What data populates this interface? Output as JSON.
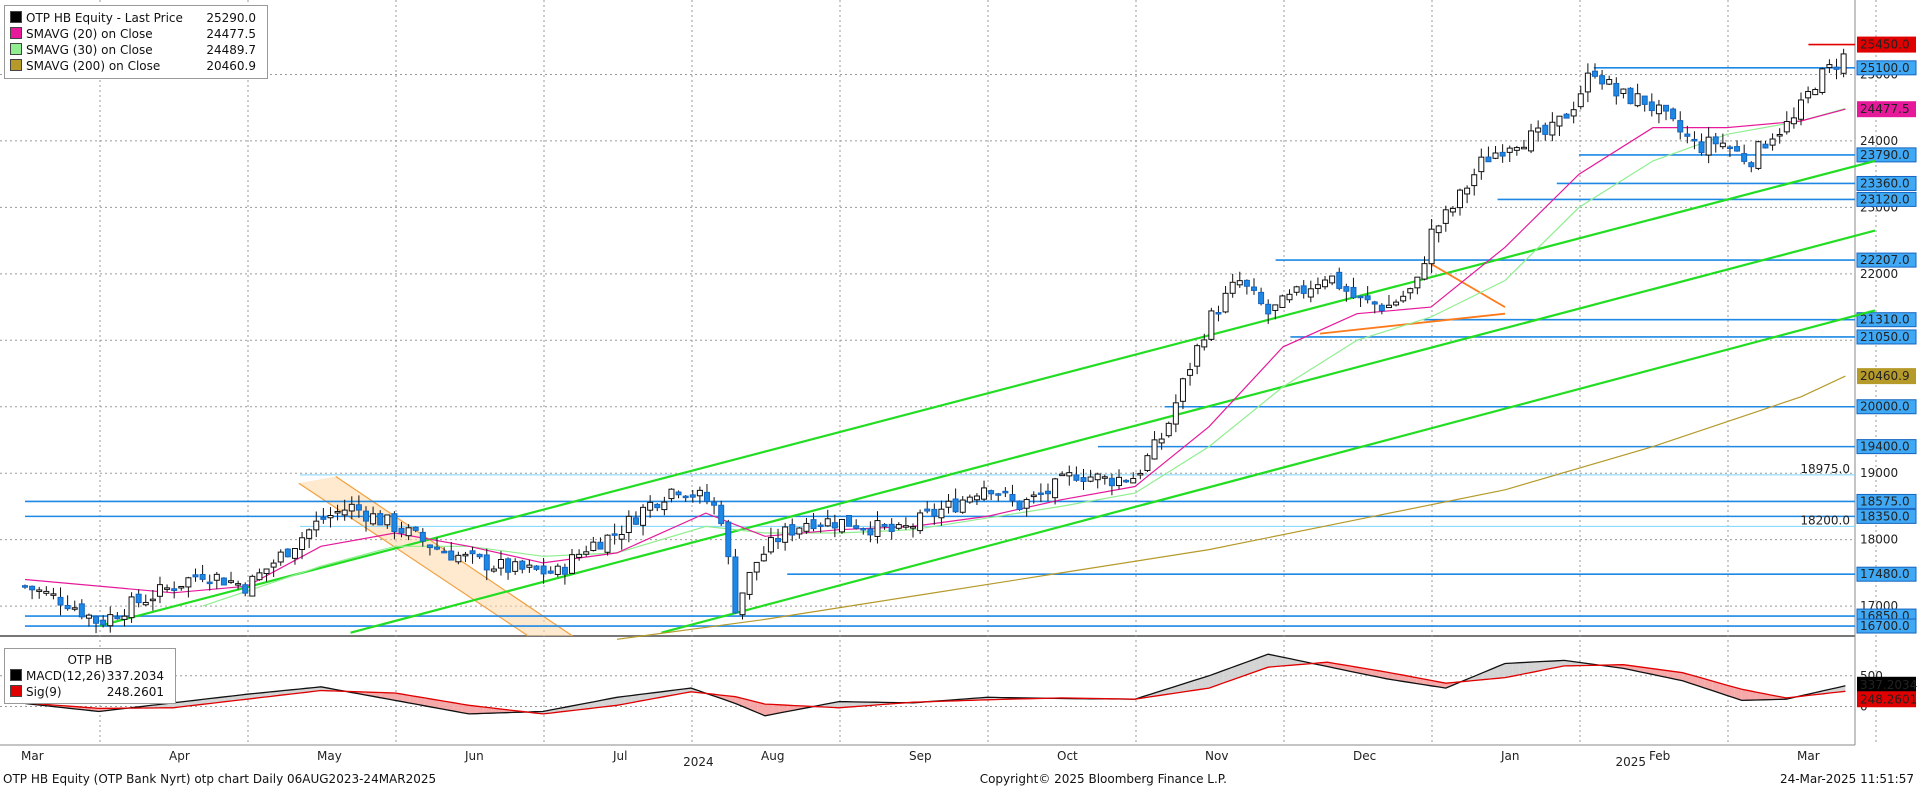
{
  "legend": {
    "items": [
      {
        "label": "OTP HB Equity - Last Price",
        "value": "25290.0",
        "color": "#000000"
      },
      {
        "label": "SMAVG (20)  on Close",
        "value": "24477.5",
        "color": "#e6199b"
      },
      {
        "label": "SMAVG (30)  on Close",
        "value": "24489.7",
        "color": "#90ee90"
      },
      {
        "label": "SMAVG (200)  on Close",
        "value": "20460.9",
        "color": "#b59a2a"
      }
    ]
  },
  "macd_legend": {
    "title": "OTP HB",
    "items": [
      {
        "label": "MACD(12,26)",
        "value": "337.2034",
        "color": "#000000"
      },
      {
        "label": "Sig(9)",
        "value": "248.2601",
        "color": "#e00000"
      }
    ]
  },
  "footer": {
    "left": "OTP HB Equity (OTP Bank Nyrt) otp chart  Daily 06AUG2023-24MAR2025",
    "center": "Copyright© 2025 Bloomberg Finance L.P.",
    "right": "24-Mar-2025 11:51:57"
  },
  "chart_data": {
    "type": "candlestick",
    "title": "OTP HB Equity - Last Price",
    "ylim": [
      16550,
      25850
    ],
    "macd_ylim": [
      -300,
      1000
    ],
    "y_ticks": [
      17000,
      18000,
      19000,
      20000,
      21000,
      22000,
      23000,
      24000,
      25000
    ],
    "macd_ticks": [
      0,
      500
    ],
    "x_months": [
      {
        "label": "Mar",
        "pos": 0.0
      },
      {
        "label": "Apr",
        "pos": 1.0
      },
      {
        "label": "May",
        "pos": 2.0
      },
      {
        "label": "Jun",
        "pos": 3.0
      },
      {
        "label": "Jul",
        "pos": 4.0
      },
      {
        "label": "Aug",
        "pos": 5.0
      },
      {
        "label": "Sep",
        "pos": 6.0
      },
      {
        "label": "Oct",
        "pos": 7.0
      },
      {
        "label": "Nov",
        "pos": 8.0
      },
      {
        "label": "Dec",
        "pos": 9.0
      },
      {
        "label": "Jan",
        "pos": 10.0
      },
      {
        "label": "Feb",
        "pos": 11.0
      },
      {
        "label": "Mar",
        "pos": 12.0
      }
    ],
    "x_years": [
      {
        "label": "2024",
        "pos": 4.55
      },
      {
        "label": "2025",
        "pos": 10.85
      }
    ],
    "price_anchors": [
      [
        0.0,
        17300
      ],
      [
        0.3,
        17050
      ],
      [
        0.5,
        16750
      ],
      [
        0.7,
        17000
      ],
      [
        1.0,
        17300
      ],
      [
        1.2,
        17500
      ],
      [
        1.5,
        17300
      ],
      [
        1.8,
        17900
      ],
      [
        2.0,
        18300
      ],
      [
        2.2,
        18500
      ],
      [
        2.5,
        18200
      ],
      [
        2.8,
        17850
      ],
      [
        3.0,
        17700
      ],
      [
        3.3,
        17550
      ],
      [
        3.6,
        17500
      ],
      [
        3.8,
        17900
      ],
      [
        4.0,
        18100
      ],
      [
        4.2,
        18500
      ],
      [
        4.4,
        18800
      ],
      [
        4.6,
        18600
      ],
      [
        4.7,
        18400
      ],
      [
        4.8,
        17000
      ],
      [
        4.95,
        17700
      ],
      [
        5.1,
        18050
      ],
      [
        5.3,
        18300
      ],
      [
        5.6,
        18250
      ],
      [
        5.9,
        18100
      ],
      [
        6.1,
        18350
      ],
      [
        6.3,
        18550
      ],
      [
        6.5,
        18850
      ],
      [
        6.7,
        18500
      ],
      [
        6.9,
        18700
      ],
      [
        7.1,
        19000
      ],
      [
        7.3,
        18900
      ],
      [
        7.5,
        18950
      ],
      [
        7.7,
        19600
      ],
      [
        7.85,
        20500
      ],
      [
        8.0,
        21300
      ],
      [
        8.1,
        21600
      ],
      [
        8.2,
        21900
      ],
      [
        8.4,
        21400
      ],
      [
        8.6,
        21700
      ],
      [
        8.8,
        22000
      ],
      [
        9.0,
        21600
      ],
      [
        9.2,
        21500
      ],
      [
        9.4,
        21800
      ],
      [
        9.5,
        22600
      ],
      [
        9.65,
        23000
      ],
      [
        9.85,
        23700
      ],
      [
        10.05,
        24000
      ],
      [
        10.3,
        24100
      ],
      [
        10.45,
        24500
      ],
      [
        10.6,
        25100
      ],
      [
        10.75,
        24700
      ],
      [
        10.95,
        24600
      ],
      [
        11.1,
        24300
      ],
      [
        11.3,
        23900
      ],
      [
        11.45,
        24000
      ],
      [
        11.65,
        23700
      ],
      [
        11.8,
        24100
      ],
      [
        11.95,
        24300
      ],
      [
        12.1,
        24900
      ],
      [
        12.3,
        25290
      ]
    ],
    "sma20": [
      [
        0.0,
        17400
      ],
      [
        1.0,
        17200
      ],
      [
        1.5,
        17300
      ],
      [
        2.0,
        17900
      ],
      [
        2.5,
        18100
      ],
      [
        3.0,
        17900
      ],
      [
        3.5,
        17650
      ],
      [
        4.0,
        17800
      ],
      [
        4.6,
        18400
      ],
      [
        5.0,
        18050
      ],
      [
        5.5,
        18150
      ],
      [
        6.0,
        18200
      ],
      [
        6.5,
        18350
      ],
      [
        7.0,
        18600
      ],
      [
        7.5,
        18800
      ],
      [
        8.0,
        19700
      ],
      [
        8.5,
        20900
      ],
      [
        9.0,
        21400
      ],
      [
        9.5,
        21500
      ],
      [
        10.0,
        22400
      ],
      [
        10.5,
        23500
      ],
      [
        11.0,
        24200
      ],
      [
        11.5,
        24200
      ],
      [
        12.0,
        24300
      ],
      [
        12.3,
        24477.5
      ]
    ],
    "sma30": [
      [
        1.2,
        17000
      ],
      [
        2.0,
        17600
      ],
      [
        2.5,
        17900
      ],
      [
        3.0,
        17900
      ],
      [
        3.5,
        17750
      ],
      [
        4.0,
        17800
      ],
      [
        4.6,
        18200
      ],
      [
        5.0,
        18100
      ],
      [
        5.5,
        18100
      ],
      [
        6.0,
        18150
      ],
      [
        7.0,
        18500
      ],
      [
        7.5,
        18700
      ],
      [
        8.0,
        19400
      ],
      [
        8.5,
        20300
      ],
      [
        9.0,
        21000
      ],
      [
        9.5,
        21350
      ],
      [
        10.0,
        21900
      ],
      [
        10.5,
        23000
      ],
      [
        11.0,
        23700
      ],
      [
        11.5,
        24100
      ],
      [
        12.0,
        24300
      ],
      [
        12.3,
        24489.7
      ]
    ],
    "sma200": [
      [
        4.0,
        16500
      ],
      [
        5.0,
        16800
      ],
      [
        6.0,
        17150
      ],
      [
        7.0,
        17500
      ],
      [
        8.0,
        17850
      ],
      [
        9.0,
        18300
      ],
      [
        10.0,
        18750
      ],
      [
        11.0,
        19400
      ],
      [
        12.0,
        20150
      ],
      [
        12.3,
        20460.9
      ]
    ],
    "trend_lines": [
      [
        [
          0.5,
          16700
        ],
        [
          12.5,
          23700
        ]
      ],
      [
        [
          2.2,
          16600
        ],
        [
          12.5,
          22650
        ]
      ],
      [
        [
          4.3,
          16600
        ],
        [
          12.5,
          21450
        ]
      ]
    ],
    "orange_lines": [
      [
        [
          9.5,
          22150
        ],
        [
          10.0,
          21500
        ]
      ],
      [
        [
          8.75,
          21100
        ],
        [
          10.0,
          21400
        ]
      ]
    ],
    "flag_lines": [
      [
        [
          1.85,
          18850
        ],
        [
          3.4,
          16550
        ]
      ],
      [
        [
          2.1,
          18950
        ],
        [
          3.7,
          16550
        ]
      ]
    ],
    "h_lines": [
      {
        "value": 25100,
        "label": "25100.0",
        "from": 10.6
      },
      {
        "value": 23790,
        "label": "23790.0",
        "from": 10.5
      },
      {
        "value": 23360,
        "label": "23360.0",
        "from": 10.35
      },
      {
        "value": 23120,
        "label": "23120.0",
        "from": 9.95
      },
      {
        "value": 22207,
        "label": "22207.0",
        "from": 8.45
      },
      {
        "value": 21310,
        "label": "21310.0",
        "from": 9.45
      },
      {
        "value": 21050,
        "label": "21050.0",
        "from": 8.55
      },
      {
        "value": 20000,
        "label": "20000.0",
        "from": 7.7
      },
      {
        "value": 19400,
        "label": "19400.0",
        "from": 7.25
      },
      {
        "value": 18575,
        "label": "18575.0",
        "from": 0.0
      },
      {
        "value": 18350,
        "label": "18350.0",
        "from": 0.0
      },
      {
        "value": 17480,
        "label": "17480.0",
        "from": 5.15
      },
      {
        "value": 16850,
        "label": "16850.0",
        "from": 0.0
      },
      {
        "value": 16700,
        "label": "16700.0",
        "from": 0.0
      }
    ],
    "h_lines_light": [
      {
        "value": 18975,
        "label": "18975.0"
      },
      {
        "value": 18200,
        "label": "18200.0"
      }
    ],
    "right_labels": [
      {
        "value": 25450,
        "label": "25450.0",
        "bg": "#e00000",
        "fg": "#ffffff"
      },
      {
        "value": 24477.5,
        "label": "24477.5",
        "bg": "#e6199b",
        "fg": "#ffffff"
      },
      {
        "value": 20460.9,
        "label": "20460.9",
        "bg": "#b59a2a",
        "fg": "#000000"
      }
    ],
    "resistance": {
      "value": 25450,
      "from": 12.05
    },
    "macd_anchors": [
      [
        0.0,
        50
      ],
      [
        0.5,
        -80
      ],
      [
        1.0,
        60
      ],
      [
        1.5,
        200
      ],
      [
        2.0,
        320
      ],
      [
        2.5,
        100
      ],
      [
        3.0,
        -120
      ],
      [
        3.5,
        -80
      ],
      [
        4.0,
        150
      ],
      [
        4.5,
        300
      ],
      [
        4.8,
        50
      ],
      [
        5.0,
        -150
      ],
      [
        5.5,
        80
      ],
      [
        6.0,
        60
      ],
      [
        6.5,
        150
      ],
      [
        7.0,
        130
      ],
      [
        7.5,
        120
      ],
      [
        8.0,
        500
      ],
      [
        8.4,
        850
      ],
      [
        8.8,
        650
      ],
      [
        9.2,
        450
      ],
      [
        9.6,
        300
      ],
      [
        10.0,
        700
      ],
      [
        10.4,
        750
      ],
      [
        10.8,
        620
      ],
      [
        11.2,
        420
      ],
      [
        11.6,
        100
      ],
      [
        11.9,
        120
      ],
      [
        12.3,
        337.2
      ]
    ],
    "signal_anchors": [
      [
        0.0,
        60
      ],
      [
        0.5,
        -30
      ],
      [
        1.0,
        -20
      ],
      [
        1.5,
        120
      ],
      [
        2.0,
        260
      ],
      [
        2.5,
        220
      ],
      [
        3.0,
        20
      ],
      [
        3.5,
        -120
      ],
      [
        4.0,
        20
      ],
      [
        4.5,
        240
      ],
      [
        4.8,
        160
      ],
      [
        5.0,
        40
      ],
      [
        5.5,
        -20
      ],
      [
        6.0,
        70
      ],
      [
        6.5,
        110
      ],
      [
        7.0,
        140
      ],
      [
        7.5,
        120
      ],
      [
        8.0,
        300
      ],
      [
        8.4,
        640
      ],
      [
        8.8,
        720
      ],
      [
        9.2,
        560
      ],
      [
        9.6,
        380
      ],
      [
        10.0,
        470
      ],
      [
        10.4,
        660
      ],
      [
        10.8,
        680
      ],
      [
        11.2,
        550
      ],
      [
        11.6,
        280
      ],
      [
        11.9,
        140
      ],
      [
        12.3,
        248.3
      ]
    ],
    "macd_labels": [
      {
        "value": 337.2,
        "label": "337.2034",
        "bg": "#000000",
        "fg": "#ffffff"
      },
      {
        "value": 248.3,
        "label": "248.2601",
        "bg": "#e00000",
        "fg": "#ffffff"
      }
    ]
  }
}
